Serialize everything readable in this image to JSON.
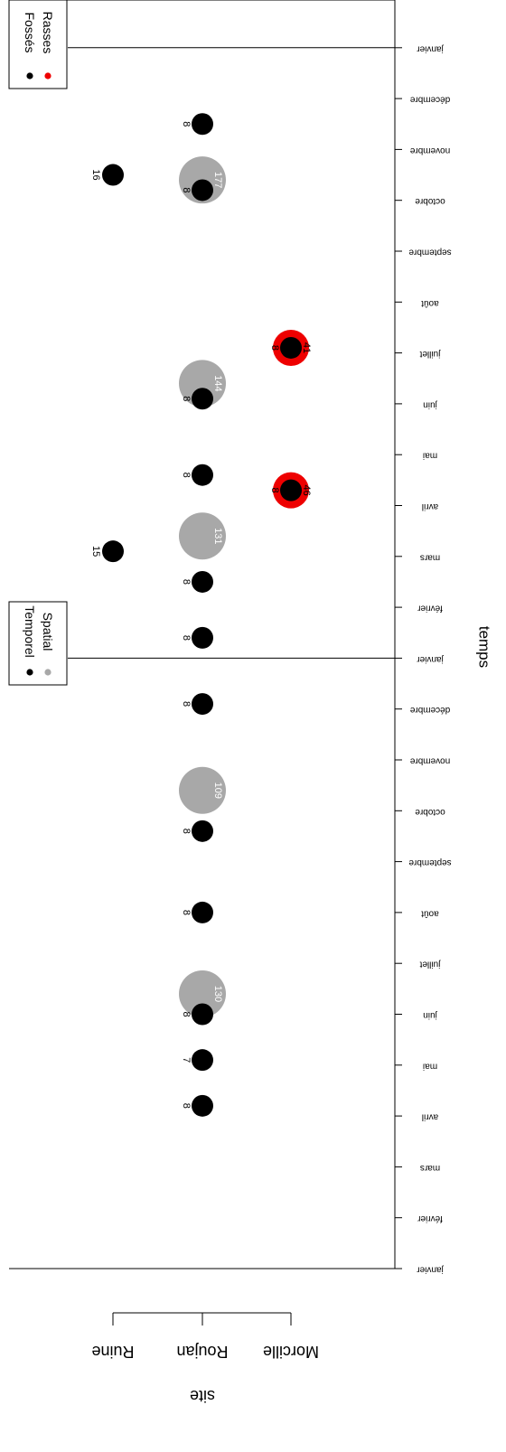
{
  "chart_data": {
    "type": "scatter",
    "orientation": "rotated-90",
    "xlabel": "temps",
    "ylabel": "site",
    "x_tick_labels": [
      "janvier",
      "février",
      "mars",
      "avril",
      "mai",
      "juin",
      "juillet",
      "août",
      "septembre",
      "octobre",
      "novembre",
      "décembre",
      "janvier",
      "février",
      "mars",
      "avril",
      "mai",
      "juin",
      "juillet",
      "août",
      "septembre",
      "octobre",
      "novembre",
      "décembre",
      "janvier"
    ],
    "x_range_months": [
      0,
      24
    ],
    "year_separators_at_month": [
      12,
      24
    ],
    "sites": [
      "Ruine",
      "Roujan",
      "Morcille"
    ],
    "series": [
      {
        "name": "Spatial",
        "color": "#a8a8a8",
        "points": [
          {
            "site": "Roujan",
            "month": 5.4,
            "label": "130"
          },
          {
            "site": "Roujan",
            "month": 9.4,
            "label": "109"
          },
          {
            "site": "Roujan",
            "month": 14.4,
            "label": "131"
          },
          {
            "site": "Roujan",
            "month": 17.4,
            "label": "144"
          },
          {
            "site": "Roujan",
            "month": 21.4,
            "label": "177"
          }
        ]
      },
      {
        "name": "Rasses",
        "color": "#ee0000",
        "points": [
          {
            "site": "Morcille",
            "month": 15.3,
            "label": "46"
          },
          {
            "site": "Morcille",
            "month": 18.1,
            "label": "41"
          }
        ]
      },
      {
        "name": "Temporel",
        "color": "#000000",
        "points": [
          {
            "site": "Roujan",
            "month": 3.2,
            "label": "8"
          },
          {
            "site": "Roujan",
            "month": 4.1,
            "label": "7"
          },
          {
            "site": "Roujan",
            "month": 5.0,
            "label": "8"
          },
          {
            "site": "Roujan",
            "month": 7.0,
            "label": "8"
          },
          {
            "site": "Roujan",
            "month": 8.6,
            "label": "8"
          },
          {
            "site": "Roujan",
            "month": 11.1,
            "label": "8"
          },
          {
            "site": "Roujan",
            "month": 12.4,
            "label": "8"
          },
          {
            "site": "Roujan",
            "month": 13.5,
            "label": "8"
          },
          {
            "site": "Roujan",
            "month": 15.6,
            "label": "8"
          },
          {
            "site": "Roujan",
            "month": 17.1,
            "label": "8"
          },
          {
            "site": "Roujan",
            "month": 21.2,
            "label": "8"
          },
          {
            "site": "Roujan",
            "month": 22.5,
            "label": "8"
          },
          {
            "site": "Ruine",
            "month": 14.1,
            "label": "15"
          },
          {
            "site": "Ruine",
            "month": 21.5,
            "label": "16"
          },
          {
            "site": "Morcille",
            "month": 15.3,
            "label": "8"
          },
          {
            "site": "Morcille",
            "month": 18.1,
            "label": "8"
          }
        ]
      }
    ],
    "legends": [
      {
        "entries": [
          {
            "label": "Temporel",
            "color": "#000000"
          },
          {
            "label": "Spatial",
            "color": "#a8a8a8"
          }
        ]
      },
      {
        "entries": [
          {
            "label": "Fossés",
            "color": "#000000"
          },
          {
            "label": "Rasses",
            "color": "#ee0000"
          }
        ]
      }
    ]
  }
}
